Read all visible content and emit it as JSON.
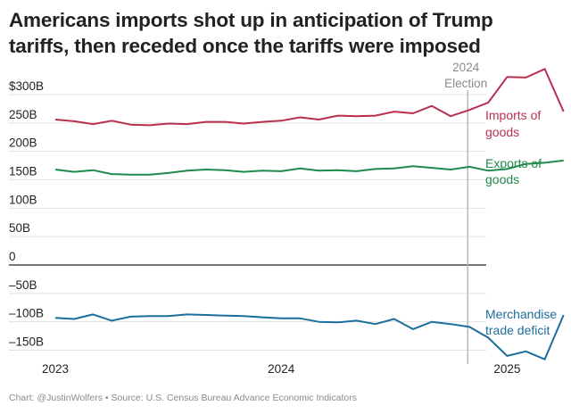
{
  "title_line1": "Americans imports shot up in anticipation of Trump",
  "title_line2": "tariffs, then receded once the tariffs were imposed",
  "credit": "Chart: @JustinWolfers • Source: U.S. Census Bureau Advance Economic Indicators",
  "chart_data": {
    "type": "line",
    "title": "Americans imports shot up in anticipation of Trump tariffs, then receded once the tariffs were imposed",
    "xlabel": "",
    "ylabel": "",
    "ylim": [
      -170,
      350
    ],
    "y_ticks": [
      {
        "value": 300,
        "label": "$300B"
      },
      {
        "value": 250,
        "label": "250B"
      },
      {
        "value": 200,
        "label": "200B"
      },
      {
        "value": 150,
        "label": "150B"
      },
      {
        "value": 100,
        "label": "100B"
      },
      {
        "value": 50,
        "label": "50B"
      },
      {
        "value": 0,
        "label": "0"
      },
      {
        "value": -50,
        "label": "–50B"
      },
      {
        "value": -100,
        "label": "–100B"
      },
      {
        "value": -150,
        "label": "–150B"
      }
    ],
    "x_ticks": [
      {
        "value": 0,
        "label": "2023"
      },
      {
        "value": 12,
        "label": "2024"
      },
      {
        "value": 24,
        "label": "2025"
      }
    ],
    "annotation": {
      "x": 22,
      "line1": "2024",
      "line2": "Election"
    },
    "x_label_note": "x = months since Jan 2023",
    "series": [
      {
        "name": "Imports of goods",
        "label_lines": [
          "Imports of",
          "goods"
        ],
        "color": "#b8304f",
        "values": [
          256,
          253,
          248,
          254,
          247,
          246,
          249,
          248,
          252,
          252,
          249,
          252,
          254,
          260,
          256,
          263,
          262,
          263,
          270,
          267,
          280,
          262,
          273,
          286,
          331,
          330,
          345,
          270
        ]
      },
      {
        "name": "Exports of goods",
        "label_lines": [
          "Exports of",
          "goods"
        ],
        "color": "#1f8a4c",
        "values": [
          168,
          164,
          167,
          160,
          159,
          159,
          162,
          166,
          168,
          167,
          164,
          166,
          165,
          170,
          166,
          167,
          165,
          169,
          170,
          174,
          171,
          168,
          173,
          166,
          169,
          178,
          180,
          184
        ]
      },
      {
        "name": "Merchandise trade deficit",
        "label_lines": [
          "Merchandise",
          "trade deficit"
        ],
        "color": "#1c6e9b",
        "values": [
          -93,
          -95,
          -87,
          -98,
          -91,
          -90,
          -90,
          -87,
          -88,
          -89,
          -90,
          -92,
          -94,
          -94,
          -100,
          -101,
          -98,
          -104,
          -95,
          -113,
          -100,
          -104,
          -109,
          -128,
          -160,
          -152,
          -166,
          -88
        ]
      }
    ]
  }
}
